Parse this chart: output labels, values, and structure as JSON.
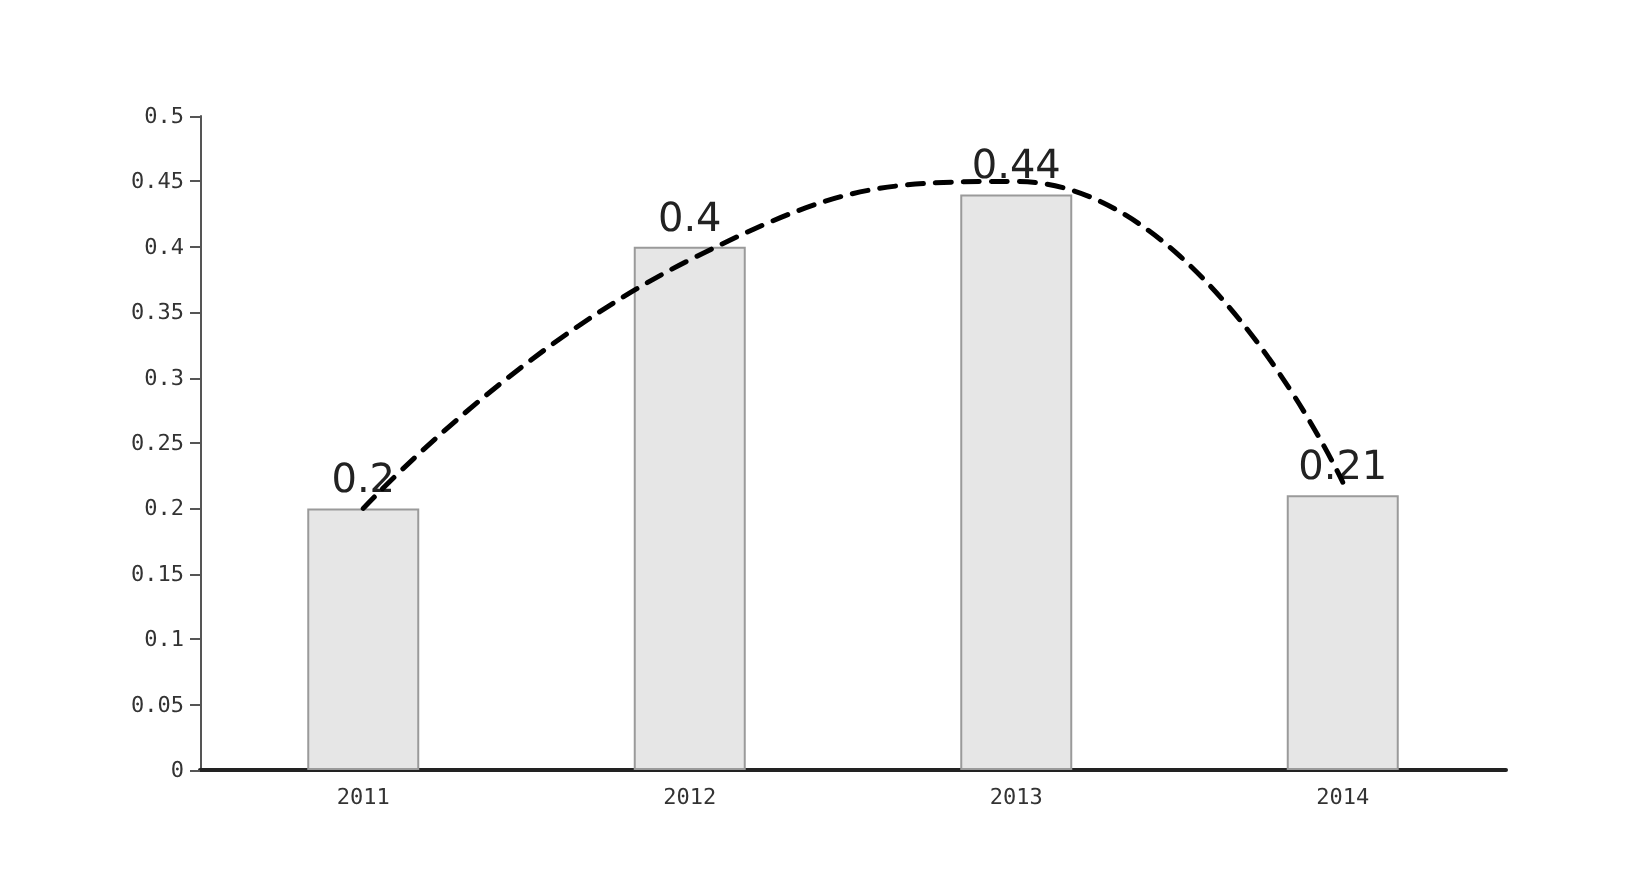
{
  "chart_data": {
    "type": "bar",
    "categories": [
      "2011",
      "2012",
      "2013",
      "2014"
    ],
    "series": [
      {
        "color": "#e6e6e6",
        "values": [
          0.2,
          0.4,
          0.44,
          0.21
        ],
        "data_labels": true
      },
      {
        "type": "line",
        "color": "#000000",
        "values": [
          0.2,
          0.39,
          0.45,
          0.22
        ],
        "line_style": "dashed",
        "marker": "none"
      }
    ],
    "ylim": [
      0,
      0.5
    ],
    "yticks": [
      0,
      0.05,
      0.1,
      0.15,
      0.2,
      0.25,
      0.3,
      0.35,
      0.4,
      0.45,
      0.5
    ],
    "grid": false
  }
}
